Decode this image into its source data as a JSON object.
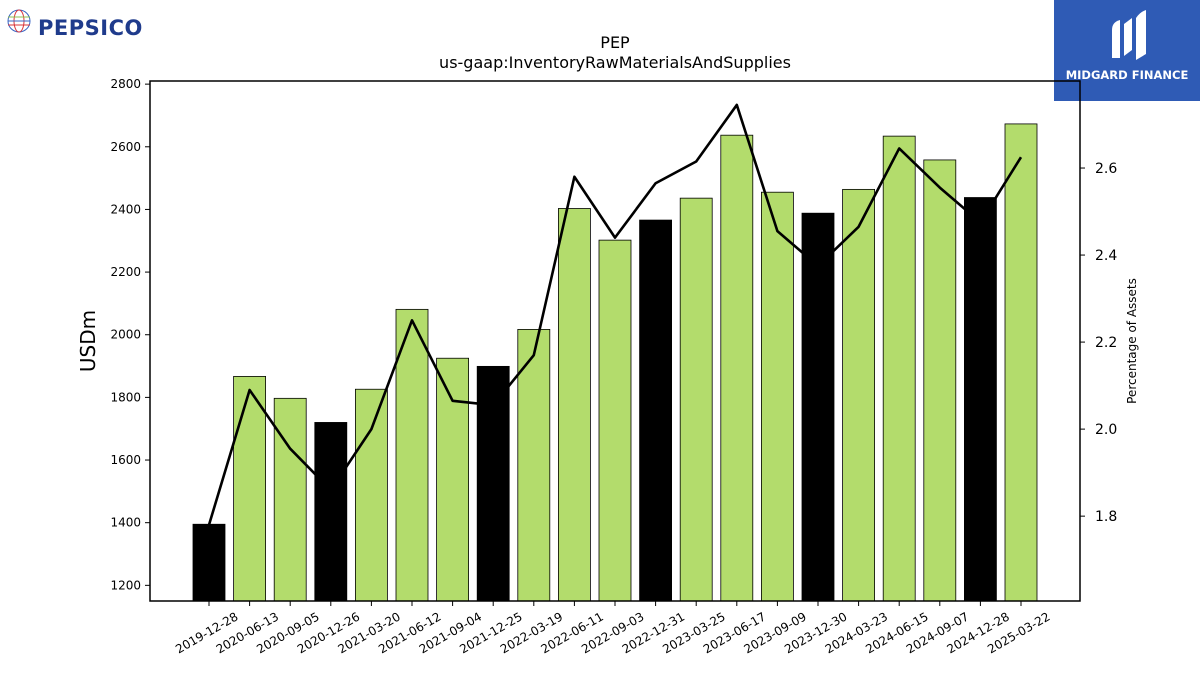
{
  "brand": {
    "company_logo_text": "PEPSICO",
    "publisher_logo_text": "MIDGARD FINANCE",
    "company_color": "#1f3b8c",
    "publisher_color": "#2f5bb5"
  },
  "chart_data": {
    "type": "bar",
    "title": "PEP",
    "subtitle": "us-gaap:InventoryRawMaterialsAndSupplies",
    "ylabel": "USDm",
    "y2label": "Percentage of Assets",
    "ylim": [
      1150,
      2810
    ],
    "y2lim": [
      1.605,
      2.8
    ],
    "yticks": [
      1200,
      1400,
      1600,
      1800,
      2000,
      2200,
      2400,
      2600,
      2800
    ],
    "y2ticks": [
      1.8,
      2.0,
      2.2,
      2.4,
      2.6
    ],
    "y2tick_labels": [
      "1.8",
      "2.0",
      "2.2",
      "2.4",
      "2.6"
    ],
    "categories": [
      "2019-12-28",
      "2020-06-13",
      "2020-09-05",
      "2020-12-26",
      "2021-03-20",
      "2021-06-12",
      "2021-09-04",
      "2021-12-25",
      "2022-03-19",
      "2022-06-11",
      "2022-09-03",
      "2022-12-31",
      "2023-03-25",
      "2023-06-17",
      "2023-09-09",
      "2023-12-30",
      "2024-03-23",
      "2024-06-15",
      "2024-09-07",
      "2024-12-28",
      "2025-03-22"
    ],
    "series": [
      {
        "type": "bar",
        "values": [
          1395,
          1867,
          1797,
          1720,
          1826,
          2081,
          1925,
          1899,
          2017,
          2403,
          2302,
          2366,
          2436,
          2637,
          2455,
          2388,
          2464,
          2634,
          2558,
          2438,
          2673
        ],
        "colors": [
          "#000000",
          "#b3dc6c",
          "#b3dc6c",
          "#000000",
          "#b3dc6c",
          "#b3dc6c",
          "#b3dc6c",
          "#000000",
          "#b3dc6c",
          "#b3dc6c",
          "#b3dc6c",
          "#000000",
          "#b3dc6c",
          "#b3dc6c",
          "#b3dc6c",
          "#000000",
          "#b3dc6c",
          "#b3dc6c",
          "#b3dc6c",
          "#000000",
          "#b3dc6c"
        ],
        "axis": "left"
      },
      {
        "type": "line",
        "values": [
          1.78,
          2.09,
          1.955,
          1.86,
          2.0,
          2.25,
          2.065,
          2.055,
          2.17,
          2.58,
          2.44,
          2.565,
          2.615,
          2.745,
          2.455,
          2.375,
          2.465,
          2.645,
          2.555,
          2.475,
          2.625
        ],
        "color": "#000000",
        "axis": "right"
      }
    ],
    "grid": false,
    "legend": "none"
  }
}
